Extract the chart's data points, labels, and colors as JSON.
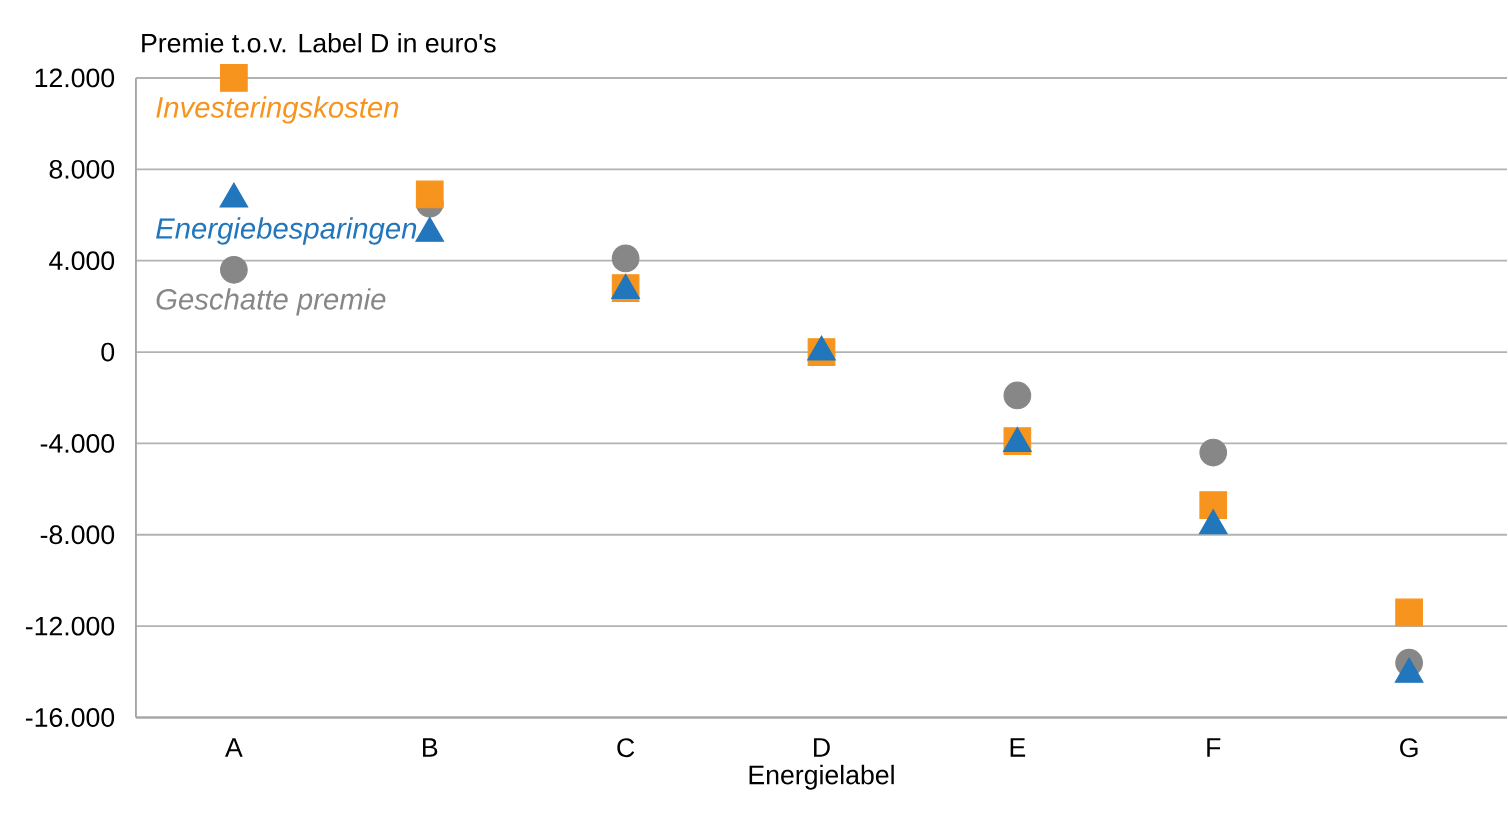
{
  "chart_data": {
    "type": "scatter",
    "ylabel": "Premie t.o.v. Label D in euro's",
    "xlabel": "Energielabel",
    "categories": [
      "A",
      "B",
      "C",
      "D",
      "E",
      "F",
      "G"
    ],
    "series": [
      {
        "name": "Geschatte premie",
        "color": "#878787",
        "marker": "circle",
        "values": [
          3600,
          6500,
          4100,
          null,
          -1900,
          -4400,
          -13600
        ]
      },
      {
        "name": "Investeringskosten",
        "color": "#f7941d",
        "marker": "square",
        "values": [
          12000,
          6900,
          2800,
          0,
          -3900,
          -6700,
          -11400
        ]
      },
      {
        "name": "Energiebesparingen",
        "color": "#2176bc",
        "marker": "triangle",
        "values": [
          6700,
          5200,
          2700,
          0,
          -4000,
          -7600,
          -14100
        ]
      }
    ],
    "ylim": [
      -16000,
      12000
    ],
    "yticks": [
      {
        "value": -16000,
        "label": "-16.000"
      },
      {
        "value": -12000,
        "label": "-12.000"
      },
      {
        "value": -8000,
        "label": "-8.000"
      },
      {
        "value": -4000,
        "label": "-4.000"
      },
      0,
      {
        "value": 4000,
        "label": "4.000"
      },
      {
        "value": 8000,
        "label": "8.000"
      },
      {
        "value": 12000,
        "label": "12.000"
      }
    ],
    "grid": "y"
  }
}
